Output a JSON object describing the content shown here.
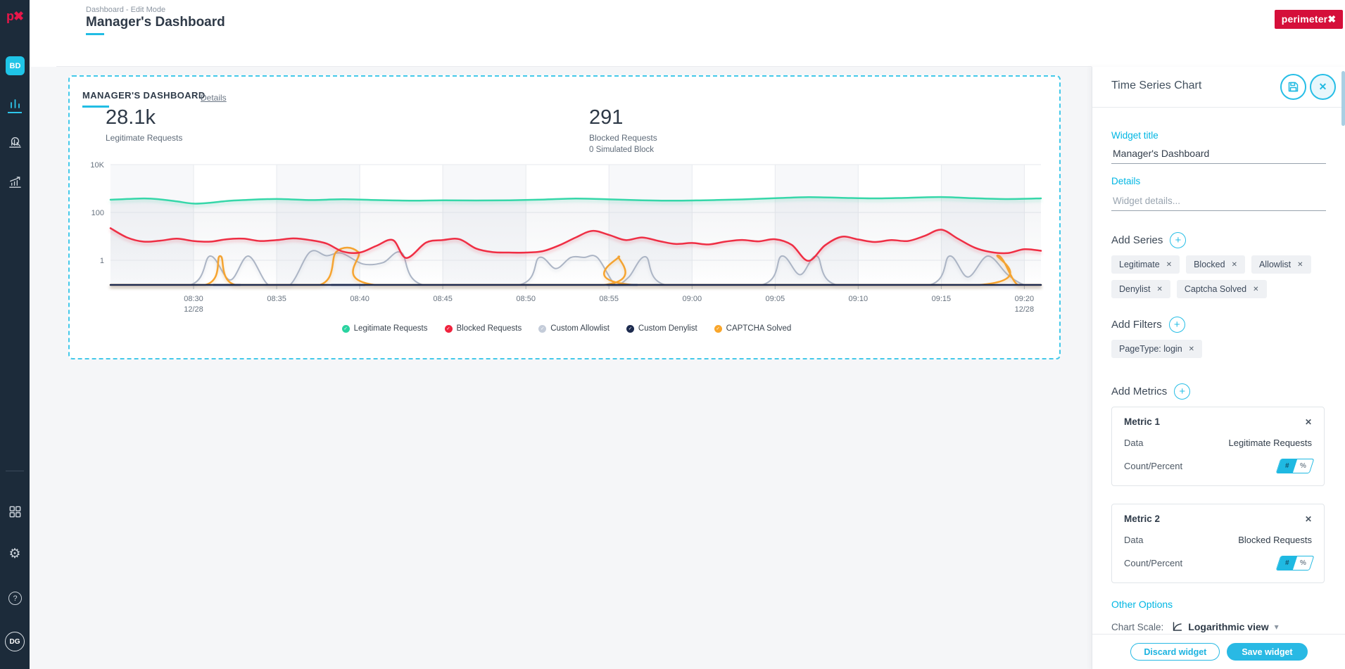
{
  "icons": {
    "close": "✕",
    "plus": "+",
    "check": "✓",
    "caret_down": "▾",
    "help": "?",
    "gear": "⚙"
  },
  "sidebar": {
    "logo": "p✖",
    "workspace_badge": "BD",
    "user_badge": "DG"
  },
  "header": {
    "breadcrumb": "Dashboard - Edit Mode",
    "title": "Manager's Dashboard",
    "brand": "perimeter✖"
  },
  "widget": {
    "title": "MANAGER'S DASHBOARD",
    "details_link": "Details",
    "stats": [
      {
        "value": "28.1k",
        "label": "Legitimate Requests",
        "sub": ""
      },
      {
        "value": "291",
        "label": "Blocked Requests",
        "sub": "0 Simulated Block"
      }
    ]
  },
  "chart_data": {
    "type": "line",
    "title": "Manager's Dashboard",
    "y_axis": {
      "scale": "log",
      "ticks": [
        {
          "v": 10000,
          "label": "10K"
        },
        {
          "v": 100,
          "label": "100"
        },
        {
          "v": 1,
          "label": "1"
        }
      ]
    },
    "x_ticks": [
      {
        "t": 5,
        "label": "08:30",
        "date": "12/28"
      },
      {
        "t": 10,
        "label": "08:35"
      },
      {
        "t": 15,
        "label": "08:40"
      },
      {
        "t": 20,
        "label": "08:45"
      },
      {
        "t": 25,
        "label": "08:50"
      },
      {
        "t": 30,
        "label": "08:55"
      },
      {
        "t": 35,
        "label": "09:00"
      },
      {
        "t": 40,
        "label": "09:05"
      },
      {
        "t": 45,
        "label": "09:10"
      },
      {
        "t": 50,
        "label": "09:15"
      },
      {
        "t": 55,
        "label": "09:20",
        "date": "12/28"
      }
    ],
    "t_range": [
      0,
      56
    ],
    "series": [
      {
        "name": "Legitimate Requests",
        "color": "#36d7a9",
        "dot": "#2ad3a0",
        "width": 2.5,
        "z": 5,
        "area_opacity": 0.1,
        "points": [
          [
            0,
            340
          ],
          [
            2,
            385
          ],
          [
            3,
            350
          ],
          [
            4,
            290
          ],
          [
            5,
            235
          ],
          [
            6,
            255
          ],
          [
            7,
            300
          ],
          [
            8,
            330
          ],
          [
            10,
            365
          ],
          [
            12,
            330
          ],
          [
            14,
            355
          ],
          [
            16,
            330
          ],
          [
            18,
            312
          ],
          [
            20,
            322
          ],
          [
            22,
            316
          ],
          [
            24,
            322
          ],
          [
            26,
            345
          ],
          [
            28,
            382
          ],
          [
            30,
            352
          ],
          [
            32,
            322
          ],
          [
            34,
            310
          ],
          [
            36,
            326
          ],
          [
            38,
            350
          ],
          [
            40,
            392
          ],
          [
            42,
            438
          ],
          [
            44,
            408
          ],
          [
            46,
            388
          ],
          [
            48,
            410
          ],
          [
            50,
            442
          ],
          [
            52,
            392
          ],
          [
            54,
            362
          ],
          [
            56,
            388
          ]
        ]
      },
      {
        "name": "Blocked Requests",
        "color": "#f4293f",
        "dot": "#f0233e",
        "width": 2.5,
        "z": 4,
        "area_opacity": 0.06,
        "points": [
          [
            0,
            22
          ],
          [
            1,
            9
          ],
          [
            2,
            6
          ],
          [
            3,
            6.6
          ],
          [
            4,
            8
          ],
          [
            5,
            6.4
          ],
          [
            6,
            6
          ],
          [
            7,
            7.6
          ],
          [
            8,
            8
          ],
          [
            9,
            6.4
          ],
          [
            10,
            7
          ],
          [
            11,
            8.2
          ],
          [
            12,
            7
          ],
          [
            13,
            5
          ],
          [
            14,
            2.3
          ],
          [
            15,
            2.1
          ],
          [
            16,
            4
          ],
          [
            17,
            7
          ],
          [
            17.8,
            1.25
          ],
          [
            19,
            5.5
          ],
          [
            20,
            7
          ],
          [
            21,
            7.6
          ],
          [
            22,
            3.1
          ],
          [
            23,
            2.2
          ],
          [
            24,
            2.1
          ],
          [
            25,
            2.1
          ],
          [
            26,
            2.4
          ],
          [
            27,
            4.2
          ],
          [
            28,
            9
          ],
          [
            29,
            17
          ],
          [
            30,
            11.5
          ],
          [
            31,
            7
          ],
          [
            32,
            9
          ],
          [
            33,
            6.4
          ],
          [
            34,
            4.8
          ],
          [
            35,
            5.3
          ],
          [
            36,
            4.6
          ],
          [
            37,
            6
          ],
          [
            38,
            7.1
          ],
          [
            39,
            6.2
          ],
          [
            40,
            7.6
          ],
          [
            41,
            4.4
          ],
          [
            42,
            0.95
          ],
          [
            43,
            4.2
          ],
          [
            44,
            9.6
          ],
          [
            45,
            7.4
          ],
          [
            46,
            5.8
          ],
          [
            47,
            7
          ],
          [
            48,
            6.4
          ],
          [
            49,
            10.5
          ],
          [
            50,
            19
          ],
          [
            51,
            8
          ],
          [
            52,
            3.4
          ],
          [
            53,
            2.2
          ],
          [
            54,
            2.0
          ],
          [
            55,
            2.9
          ],
          [
            56,
            2.5
          ]
        ]
      },
      {
        "name": "Custom Allowlist",
        "color": "#adb6c6",
        "dot": "#c4ccd9",
        "width": 2,
        "z": 1,
        "points": [
          [
            0,
            0
          ],
          [
            4.8,
            0
          ],
          [
            6,
            1.5
          ],
          [
            7.2,
            0.15
          ],
          [
            8.3,
            1.5
          ],
          [
            9.5,
            0
          ],
          [
            10.8,
            0
          ],
          [
            12,
            2.2
          ],
          [
            13,
            1.55
          ],
          [
            13.9,
            2.0
          ],
          [
            15.2,
            0.7
          ],
          [
            16.4,
            0.8
          ],
          [
            17.5,
            2.1
          ],
          [
            18.8,
            0
          ],
          [
            24.6,
            0
          ],
          [
            25.8,
            1.3
          ],
          [
            26.8,
            0.45
          ],
          [
            27.7,
            1.3
          ],
          [
            28.5,
            1.32
          ],
          [
            29.3,
            1.3
          ],
          [
            30.4,
            0
          ],
          [
            31.2,
            0.2
          ],
          [
            32.2,
            1.4
          ],
          [
            33.4,
            0
          ],
          [
            39.2,
            0
          ],
          [
            40.4,
            1.5
          ],
          [
            41.5,
            0.25
          ],
          [
            42.5,
            1.5
          ],
          [
            43.7,
            0
          ],
          [
            49.3,
            0
          ],
          [
            50.5,
            1.5
          ],
          [
            51.6,
            0.2
          ],
          [
            52.8,
            1.5
          ],
          [
            54,
            0.25
          ],
          [
            55,
            0
          ],
          [
            56,
            0
          ]
        ]
      },
      {
        "name": "Custom Denylist",
        "color": "#1e2c52",
        "dot": "#1d2b4f",
        "width": 2.5,
        "z": 3,
        "points": [
          [
            0,
            0
          ],
          [
            56,
            0
          ]
        ],
        "segments": [
          [
            6.2,
            7.8
          ],
          [
            13.3,
            15.3
          ],
          [
            29.9,
            31.7
          ]
        ]
      },
      {
        "name": "CAPTCHA Solved",
        "color": "#f9a42c",
        "dot": "#f9a62b",
        "width": 2.5,
        "z": 2,
        "points": [
          [
            0,
            0
          ],
          [
            5.7,
            0
          ],
          [
            6.6,
            1.5
          ],
          [
            7.5,
            0
          ],
          [
            12.6,
            0
          ],
          [
            13.6,
            2.3
          ],
          [
            14.9,
            2.25
          ],
          [
            15.9,
            0
          ],
          [
            29.7,
            0
          ],
          [
            30.6,
            1.45
          ],
          [
            31.5,
            0
          ],
          [
            52.3,
            0
          ],
          [
            53.4,
            1.6
          ],
          [
            54.6,
            0
          ],
          [
            56,
            0
          ]
        ]
      }
    ]
  },
  "panel": {
    "title": "Time Series Chart",
    "widget_title_label": "Widget title",
    "widget_title_value": "Manager's Dashboard",
    "details_label": "Details",
    "details_placeholder": "Widget details...",
    "add_series_label": "Add Series",
    "series_chips": [
      "Legitimate",
      "Blocked",
      "Allowlist",
      "Denylist",
      "Captcha Solved"
    ],
    "add_filters_label": "Add Filters",
    "filter_chips": [
      "PageType: login"
    ],
    "add_metrics_label": "Add Metrics",
    "metrics": [
      {
        "title": "Metric 1",
        "data_label": "Data",
        "data_value": "Legitimate Requests",
        "toggle_label": "Count/Percent",
        "count_symbol": "#",
        "percent_symbol": "%"
      },
      {
        "title": "Metric 2",
        "data_label": "Data",
        "data_value": "Blocked Requests",
        "toggle_label": "Count/Percent",
        "count_symbol": "#",
        "percent_symbol": "%"
      }
    ],
    "other_options_label": "Other Options",
    "chart_scale_label": "Chart Scale:",
    "chart_scale_value": "Logarithmic view",
    "discard_label": "Discard widget",
    "save_label": "Save widget"
  }
}
